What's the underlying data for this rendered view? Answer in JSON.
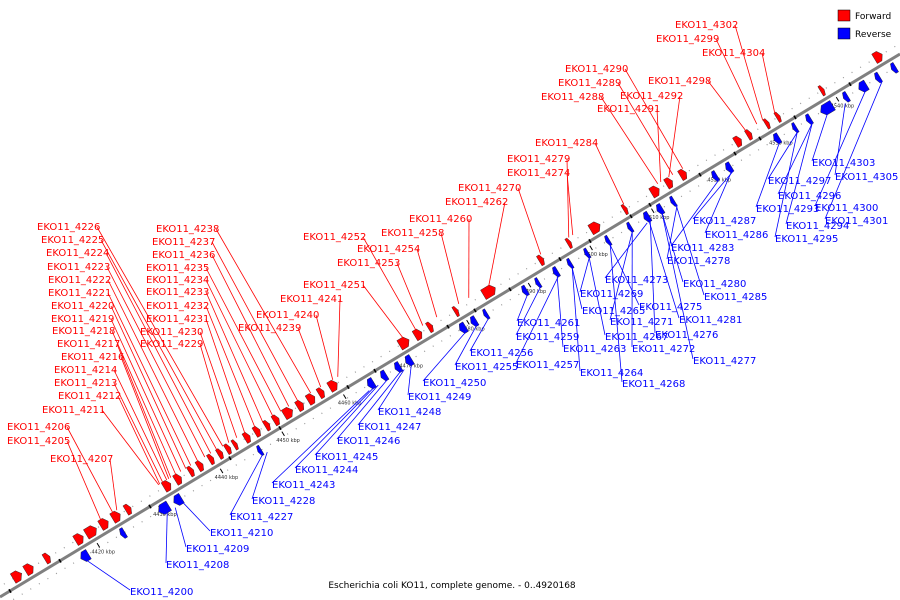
{
  "title": "Escherichia coli KO11, complete genome. - 0..4920168",
  "legend": [
    {
      "key": "forward",
      "label": "Forward",
      "color": "#ff0000"
    },
    {
      "key": "reverse",
      "label": "Reverse",
      "color": "#0000ff"
    }
  ],
  "colors": {
    "forward": "#ff0000",
    "reverse": "#0000ff",
    "backbone": "#808080",
    "leader_forward": "#ff0000",
    "leader_reverse": "#0000ff"
  },
  "kbp_ticks": [
    "4420 kbp",
    "4430 kbp",
    "4440 kbp",
    "4450 kbp",
    "4460 kbp",
    "4470 kbp",
    "4480 kbp",
    "4490 kbp",
    "4500 kbp",
    "4510 kbp",
    "4520 kbp",
    "4530 kbp",
    "4540 kbp"
  ],
  "forward_genes": [
    "EKO11_4302",
    "EKO11_4299",
    "EKO11_4304",
    "EKO11_4298",
    "EKO11_4290",
    "EKO11_4289",
    "EKO11_4292",
    "EKO11_4288",
    "EKO11_4291",
    "EKO11_4284",
    "EKO11_4279",
    "EKO11_4274",
    "EKO11_4270",
    "EKO11_4262",
    "EKO11_4260",
    "EKO11_4258",
    "EKO11_4254",
    "EKO11_4252",
    "EKO11_4253",
    "EKO11_4251",
    "EKO11_4241",
    "EKO11_4240",
    "EKO11_4239",
    "EKO11_4238",
    "EKO11_4237",
    "EKO11_4236",
    "EKO11_4235",
    "EKO11_4234",
    "EKO11_4233",
    "EKO11_4232",
    "EKO11_4231",
    "EKO11_4230",
    "EKO11_4229",
    "EKO11_4226",
    "EKO11_4225",
    "EKO11_4224",
    "EKO11_4223",
    "EKO11_4222",
    "EKO11_4221",
    "EKO11_4220",
    "EKO11_4219",
    "EKO11_4218",
    "EKO11_4217",
    "EKO11_4216",
    "EKO11_4214",
    "EKO11_4213",
    "EKO11_4212",
    "EKO11_4211",
    "EKO11_4206",
    "EKO11_4205",
    "EKO11_4207"
  ],
  "reverse_genes": [
    "EKO11_4303",
    "EKO11_4305",
    "EKO11_4297",
    "EKO11_4296",
    "EKO11_4293",
    "EKO11_4300",
    "EKO11_4301",
    "EKO11_4287",
    "EKO11_4294",
    "EKO11_4286",
    "EKO11_4295",
    "EKO11_4283",
    "EKO11_4278",
    "EKO11_4273",
    "EKO11_4280",
    "EKO11_4285",
    "EKO11_4269",
    "EKO11_4275",
    "EKO11_4265",
    "EKO11_4281",
    "EKO11_4261",
    "EKO11_4271",
    "EKO11_4259",
    "EKO11_4267",
    "EKO11_4276",
    "EKO11_4263",
    "EKO11_4272",
    "EKO11_4256",
    "EKO11_4257",
    "EKO11_4277",
    "EKO11_4255",
    "EKO11_4264",
    "EKO11_4268",
    "EKO11_4250",
    "EKO11_4249",
    "EKO11_4248",
    "EKO11_4247",
    "EKO11_4246",
    "EKO11_4245",
    "EKO11_4244",
    "EKO11_4243",
    "EKO11_4228",
    "EKO11_4227",
    "EKO11_4210",
    "EKO11_4209",
    "EKO11_4208",
    "EKO11_4200"
  ]
}
